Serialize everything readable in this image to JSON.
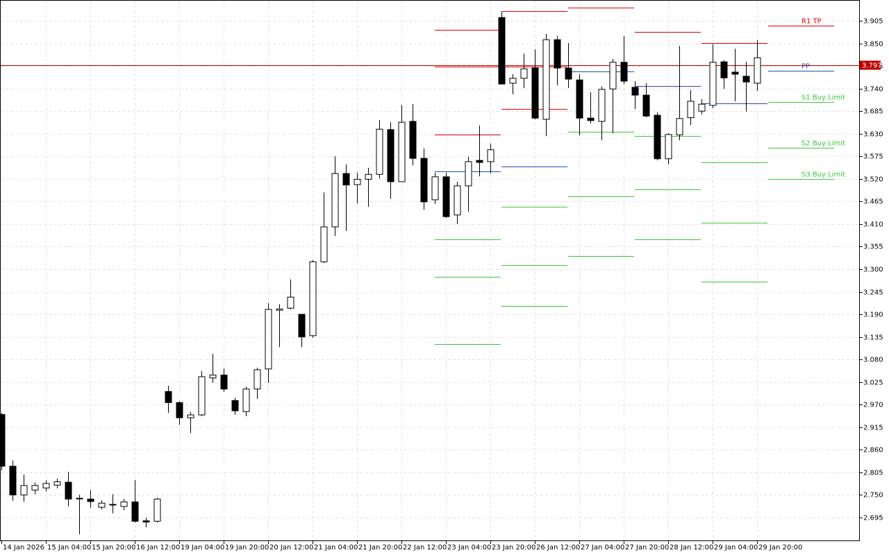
{
  "chart_data": {
    "type": "candlestick",
    "categories": [
      "14 Jan 2026",
      null,
      null,
      null,
      "15 Jan 04:00",
      null,
      null,
      null,
      "15 Jan 20:00",
      null,
      null,
      null,
      "16 Jan 12:00",
      null,
      null,
      null,
      "19 Jan 04:00",
      null,
      null,
      null,
      "19 Jan 20:00",
      null,
      null,
      null,
      "20 Jan 12:00",
      null,
      null,
      null,
      "21 Jan 04:00",
      null,
      null,
      null,
      "21 Jan 20:00",
      null,
      null,
      null,
      "22 Jan 12:00",
      null,
      null,
      null,
      "23 Jan 04:00",
      null,
      null,
      null,
      "23 Jan 20:00",
      null,
      null,
      null,
      "26 Jan 12:00",
      null,
      null,
      null,
      "27 Jan 04:00",
      null,
      null,
      null,
      "27 Jan 20:00",
      null,
      null,
      null,
      "28 Jan 12:00",
      null,
      null,
      null,
      "29 Jan 04:00",
      null,
      null,
      null,
      "29 Jan 20:00"
    ],
    "open": [
      2.946,
      2.82,
      2.75,
      2.762,
      2.767,
      2.774,
      2.781,
      2.742,
      2.74,
      2.72,
      2.727,
      2.722,
      2.733,
      2.687,
      2.686,
      3.002,
      2.975,
      2.938,
      2.945,
      3.035,
      3.042,
      2.98,
      2.953,
      3.008,
      3.057,
      3.2,
      3.205,
      3.19,
      3.138,
      3.318,
      3.403,
      3.533,
      3.506,
      3.519,
      3.531,
      3.64,
      3.513,
      3.66,
      3.57,
      3.469,
      3.525,
      3.432,
      3.503,
      3.565,
      3.562,
      3.913,
      3.753,
      3.765,
      3.79,
      3.665,
      3.859,
      3.79,
      3.761,
      3.668,
      3.66,
      3.739,
      3.804,
      3.743,
      3.724,
      3.675,
      3.569,
      3.627,
      3.669,
      3.685,
      3.699,
      3.805,
      3.78,
      3.77,
      3.753
    ],
    "high": [
      2.95,
      2.834,
      2.8,
      2.78,
      2.786,
      2.79,
      2.806,
      2.75,
      2.762,
      2.737,
      2.752,
      2.74,
      2.786,
      2.695,
      2.743,
      3.016,
      2.978,
      2.952,
      3.052,
      3.094,
      3.058,
      2.987,
      3.014,
      3.06,
      3.217,
      3.215,
      3.275,
      3.19,
      3.322,
      3.487,
      3.575,
      3.555,
      3.535,
      3.547,
      3.663,
      3.658,
      3.7,
      3.702,
      3.594,
      3.535,
      3.535,
      3.513,
      3.574,
      3.65,
      3.606,
      3.927,
      3.775,
      3.825,
      3.836,
      3.873,
      3.868,
      3.851,
      3.775,
      3.731,
      3.745,
      3.812,
      3.868,
      3.758,
      3.753,
      3.682,
      3.631,
      3.844,
      3.736,
      3.714,
      3.848,
      3.809,
      3.837,
      3.805,
      3.858
    ],
    "low": [
      2.81,
      2.736,
      2.733,
      2.752,
      2.759,
      2.766,
      2.722,
      2.654,
      2.719,
      2.715,
      2.705,
      2.713,
      2.683,
      2.671,
      2.683,
      2.95,
      2.921,
      2.901,
      2.942,
      3.023,
      3.001,
      2.945,
      2.942,
      2.984,
      3.023,
      3.11,
      3.202,
      3.11,
      3.133,
      3.315,
      3.381,
      3.393,
      3.46,
      3.452,
      3.521,
      3.471,
      3.513,
      3.553,
      3.445,
      3.459,
      3.425,
      3.41,
      3.44,
      3.526,
      3.533,
      3.751,
      3.726,
      3.741,
      3.665,
      3.624,
      3.748,
      3.741,
      3.626,
      3.655,
      3.614,
      3.631,
      3.751,
      3.69,
      3.67,
      3.565,
      3.555,
      3.614,
      3.651,
      3.677,
      3.692,
      3.739,
      3.709,
      3.684,
      3.734
    ],
    "close": [
      2.82,
      2.75,
      2.773,
      2.773,
      2.778,
      2.782,
      2.74,
      2.741,
      2.734,
      2.73,
      2.726,
      2.733,
      2.686,
      2.684,
      2.74,
      2.975,
      2.938,
      2.945,
      3.038,
      3.042,
      3.008,
      2.955,
      3.008,
      3.055,
      3.202,
      3.203,
      3.232,
      3.135,
      3.318,
      3.403,
      3.533,
      3.505,
      3.519,
      3.531,
      3.641,
      3.513,
      3.658,
      3.57,
      3.464,
      3.525,
      3.428,
      3.503,
      3.562,
      3.56,
      3.591,
      3.751,
      3.765,
      3.788,
      3.668,
      3.859,
      3.79,
      3.763,
      3.668,
      3.662,
      3.738,
      3.804,
      3.758,
      3.724,
      3.673,
      3.569,
      3.628,
      3.667,
      3.709,
      3.702,
      3.804,
      3.766,
      3.775,
      3.756,
      3.815
    ],
    "up_color": "#ffffff",
    "down_color": "#000000",
    "ylim": [
      2.6375,
      3.9557
    ],
    "yticks": [
      2.695,
      {
        "value": 2.75,
        "label": "2.750"
      },
      2.805,
      {
        "value": 2.86,
        "label": "2.860"
      },
      2.915,
      {
        "value": 2.97,
        "label": "2.970"
      },
      3.025,
      {
        "value": 3.08,
        "label": "3.080"
      },
      3.135,
      {
        "value": 3.19,
        "label": "3.190"
      },
      3.245,
      {
        "value": 3.3,
        "label": "3.300"
      },
      3.355,
      {
        "value": 3.41,
        "label": "3.410"
      },
      3.465,
      {
        "value": 3.52,
        "label": "3.520"
      },
      3.575,
      {
        "value": 3.63,
        "label": "3.630"
      },
      3.685,
      {
        "value": 3.74,
        "label": "3.740"
      },
      3.795,
      {
        "value": 3.85,
        "label": "3.850"
      },
      3.905
    ],
    "grid": true,
    "last_price": 3.797,
    "last_price_color": "#c00000",
    "resistance_color": "#e00000",
    "pivot_color": "#1f4fa8",
    "support_color": "#3cc43c",
    "pivots": [
      {
        "start": 39,
        "resistance": [
          3.883,
          3.793,
          3.628
        ],
        "pivot": 3.538,
        "support": [
          3.372,
          3.281,
          3.117
        ]
      },
      {
        "start": 45,
        "resistance": [
          3.929,
          3.793,
          3.69
        ],
        "pivot": 3.55,
        "support": [
          3.452,
          3.31,
          3.21
        ]
      },
      {
        "start": 51,
        "resistance": [
          3.937
        ],
        "pivot": 3.782,
        "support": [
          3.634,
          3.477,
          3.332
        ]
      },
      {
        "start": 57,
        "resistance": [
          3.878
        ],
        "pivot": 3.746,
        "support": [
          3.624,
          3.494,
          3.372
        ]
      },
      {
        "start": 63,
        "resistance": [
          3.851
        ],
        "pivot": 3.704,
        "support": [
          3.56,
          3.413,
          3.269
        ]
      },
      {
        "start": 69,
        "resistance": [
          3.893
        ],
        "resistance_labels": [
          "R1 TP"
        ],
        "pivot": 3.783,
        "pivot_label": "PP",
        "support": [
          3.707,
          3.596,
          3.52
        ],
        "support_labels": [
          "S1 Buy Limit",
          "S2 Buy Limit",
          "S3 Buy Limit"
        ]
      }
    ]
  }
}
